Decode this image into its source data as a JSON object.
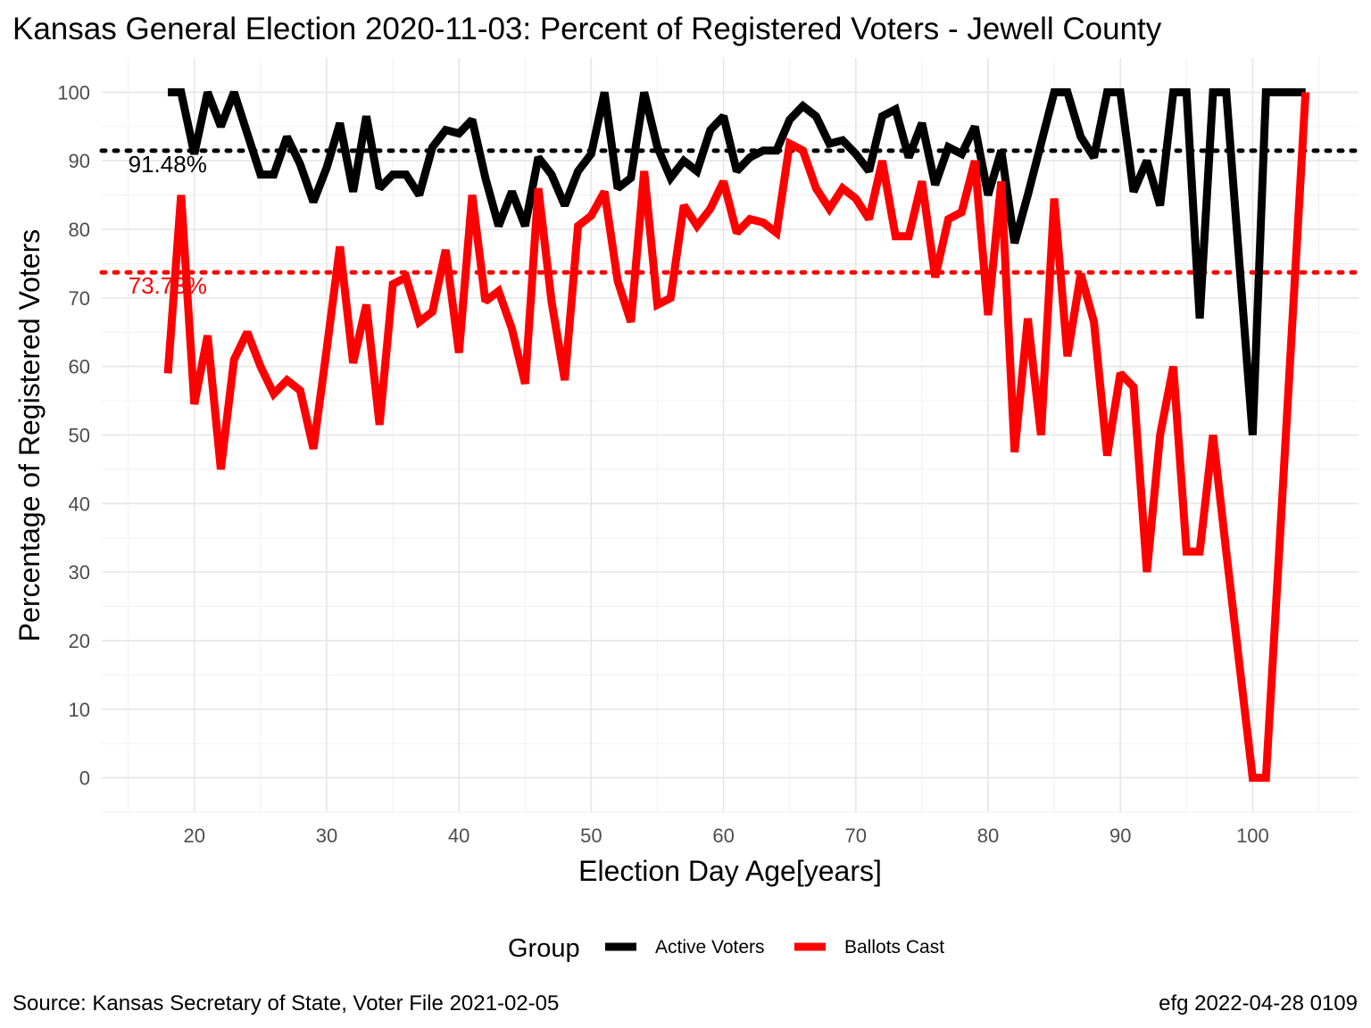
{
  "title": "Kansas General Election 2020-11-03:  Percent of Registered Voters - Jewell County",
  "caption_left": "Source:  Kansas Secretary of State, Voter File  2021-02-05",
  "caption_right": "efg 2022-04-28 0109",
  "legend": {
    "title": "Group",
    "items": [
      {
        "label": "Active Voters",
        "color": "#000000"
      },
      {
        "label": "Ballots Cast",
        "color": "#ff0000"
      }
    ]
  },
  "chart_data": {
    "type": "line",
    "title": "Kansas General Election 2020-11-03:  Percent of Registered Voters - Jewell County",
    "xlabel": "Election Day Age[years]",
    "ylabel": "Percentage of Registered Voters",
    "xlim": [
      13,
      108
    ],
    "ylim": [
      -5,
      105
    ],
    "x_ticks": [
      20,
      30,
      40,
      50,
      60,
      70,
      80,
      90,
      100
    ],
    "y_ticks": [
      0,
      10,
      20,
      30,
      40,
      50,
      60,
      70,
      80,
      90,
      100
    ],
    "grid": true,
    "legend_position": "bottom",
    "reference_lines": [
      {
        "value": 91.48,
        "label": "91.48%",
        "color": "#000000",
        "style": "dotted"
      },
      {
        "value": 73.73,
        "label": "73.73%",
        "color": "#ff0000",
        "style": "dotted"
      }
    ],
    "series": [
      {
        "name": "Active Voters",
        "color": "#000000",
        "x": [
          18,
          19,
          20,
          21,
          22,
          23,
          24,
          25,
          26,
          27,
          28,
          29,
          30,
          31,
          32,
          33,
          34,
          35,
          36,
          37,
          38,
          39,
          40,
          41,
          42,
          43,
          44,
          45,
          46,
          47,
          48,
          49,
          50,
          51,
          52,
          53,
          54,
          55,
          56,
          57,
          58,
          59,
          60,
          61,
          62,
          63,
          64,
          65,
          66,
          67,
          68,
          69,
          70,
          71,
          72,
          73,
          74,
          75,
          76,
          77,
          78,
          79,
          80,
          81,
          82,
          83,
          84,
          85,
          86,
          87,
          88,
          89,
          90,
          91,
          92,
          93,
          94,
          95,
          96,
          97,
          98,
          99,
          100,
          101,
          102,
          103,
          104
        ],
        "values": [
          100,
          100,
          91,
          100,
          95,
          100,
          94,
          88,
          88,
          93.5,
          89.5,
          84,
          89,
          95.5,
          85.5,
          96.5,
          86,
          88,
          88,
          85,
          92,
          94.5,
          94,
          96,
          87.5,
          80.5,
          85.5,
          80.5,
          90.5,
          88,
          83.5,
          88.5,
          91,
          100,
          86,
          87.5,
          100,
          92,
          87.5,
          90,
          88.5,
          94.5,
          96.5,
          88.5,
          90.5,
          91.5,
          91.5,
          96,
          98,
          96.5,
          92.5,
          93,
          91,
          88.5,
          96.5,
          97.5,
          90.5,
          95.5,
          86.5,
          92,
          91,
          95,
          85,
          91.5,
          78,
          85,
          92.5,
          100,
          100,
          93.5,
          90.5,
          100,
          100,
          85.5,
          90,
          83.5,
          100,
          100,
          67,
          100,
          100,
          75,
          50,
          100,
          100,
          100,
          100
        ]
      },
      {
        "name": "Ballots Cast",
        "color": "#ff0000",
        "x": [
          18,
          19,
          20,
          21,
          22,
          23,
          24,
          25,
          26,
          27,
          28,
          29,
          30,
          31,
          32,
          33,
          34,
          35,
          36,
          37,
          38,
          39,
          40,
          41,
          42,
          43,
          44,
          45,
          46,
          47,
          48,
          49,
          50,
          51,
          52,
          53,
          54,
          55,
          56,
          57,
          58,
          59,
          60,
          61,
          62,
          63,
          64,
          65,
          66,
          67,
          68,
          69,
          70,
          71,
          72,
          73,
          74,
          75,
          76,
          77,
          78,
          79,
          80,
          81,
          82,
          83,
          84,
          85,
          86,
          87,
          88,
          89,
          90,
          91,
          92,
          93,
          94,
          95,
          96,
          97,
          98,
          99,
          100,
          101,
          102,
          103,
          104
        ],
        "values": [
          59,
          85,
          54.5,
          64.5,
          45,
          61,
          65,
          60,
          56,
          58,
          56.5,
          48,
          62.5,
          77.5,
          60.5,
          69,
          51.5,
          72,
          73,
          66.5,
          68,
          77,
          62,
          85,
          69.5,
          71,
          65.5,
          57.5,
          86,
          69.5,
          58,
          80.5,
          82,
          85.5,
          72.5,
          66.5,
          88.5,
          69,
          70,
          83.5,
          80.5,
          83,
          87,
          79.5,
          81.5,
          81,
          79.5,
          92.5,
          91.5,
          86,
          83,
          86,
          84.5,
          81.5,
          90,
          79,
          79,
          87,
          73,
          81.5,
          82.5,
          90,
          67.5,
          87,
          47.5,
          67,
          50,
          84.5,
          61.5,
          73.5,
          66.5,
          47,
          59,
          57,
          30,
          50,
          60,
          33,
          33,
          50,
          33,
          16.5,
          0,
          0,
          33,
          66.5,
          100
        ]
      }
    ]
  }
}
